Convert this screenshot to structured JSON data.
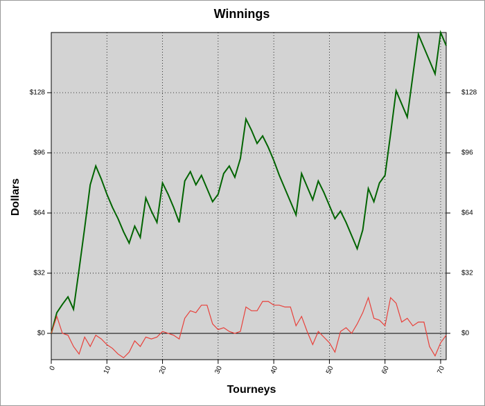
{
  "chart_data": {
    "type": "line",
    "title": "Winnings",
    "xlabel": "Tourneys",
    "ylabel": "Dollars",
    "x": [
      0,
      1,
      2,
      3,
      4,
      5,
      6,
      7,
      8,
      9,
      10,
      11,
      12,
      13,
      14,
      15,
      16,
      17,
      18,
      19,
      20,
      21,
      22,
      23,
      24,
      25,
      26,
      27,
      28,
      29,
      30,
      31,
      32,
      33,
      34,
      35,
      36,
      37,
      38,
      39,
      40,
      41,
      42,
      43,
      44,
      45,
      46,
      47,
      48,
      49,
      50,
      51,
      52,
      53,
      54,
      55,
      56,
      57,
      58,
      59,
      60,
      61,
      62,
      63,
      64,
      65,
      66,
      67,
      68,
      69,
      70,
      71
    ],
    "series": [
      {
        "color": "#006400",
        "values": [
          0,
          11,
          15.4,
          19.4,
          12.8,
          34,
          56,
          79,
          89,
          82,
          74,
          67,
          61,
          54,
          48,
          57,
          51,
          72,
          65,
          59,
          80,
          74,
          67,
          59,
          81,
          86,
          79,
          84,
          77,
          70,
          74,
          85,
          89,
          83,
          93,
          114,
          108,
          101,
          105,
          99,
          92,
          84,
          77,
          70,
          63,
          85,
          78,
          71,
          81,
          75,
          68,
          61,
          65,
          59,
          52,
          45,
          55,
          77,
          70,
          80,
          84,
          106,
          129,
          122,
          115,
          137,
          159,
          152,
          145,
          138,
          160,
          153
        ]
      },
      {
        "color": "#e8403a",
        "values": [
          0,
          9,
          0,
          -1,
          -7,
          -11,
          -2,
          -7,
          -1,
          -3,
          -6,
          -8,
          -11,
          -13,
          -10,
          -4,
          -7,
          -2,
          -3,
          -2,
          1,
          0,
          -1,
          -3,
          8,
          12,
          11,
          15,
          15,
          5,
          2,
          3,
          1,
          0,
          1,
          14,
          12,
          12,
          17,
          17,
          15,
          15,
          14,
          14,
          4,
          9,
          1,
          -6,
          1,
          -2,
          -5,
          -10,
          1,
          3,
          0,
          5,
          11,
          19,
          8,
          7,
          4,
          19,
          16,
          6,
          8,
          4,
          6,
          6,
          -7,
          -12,
          -5,
          -1
        ]
      }
    ],
    "xlim": [
      0,
      71
    ],
    "xticks": [
      0,
      10,
      20,
      30,
      40,
      50,
      60,
      70
    ],
    "ylim": [
      -14,
      160
    ],
    "yticks": [
      {
        "value": 0,
        "label": "$0"
      },
      {
        "value": 32,
        "label": "$32"
      },
      {
        "value": 64,
        "label": "$64"
      },
      {
        "value": 96,
        "label": "$96"
      },
      {
        "value": 128,
        "label": "$128"
      }
    ],
    "grid": true
  }
}
